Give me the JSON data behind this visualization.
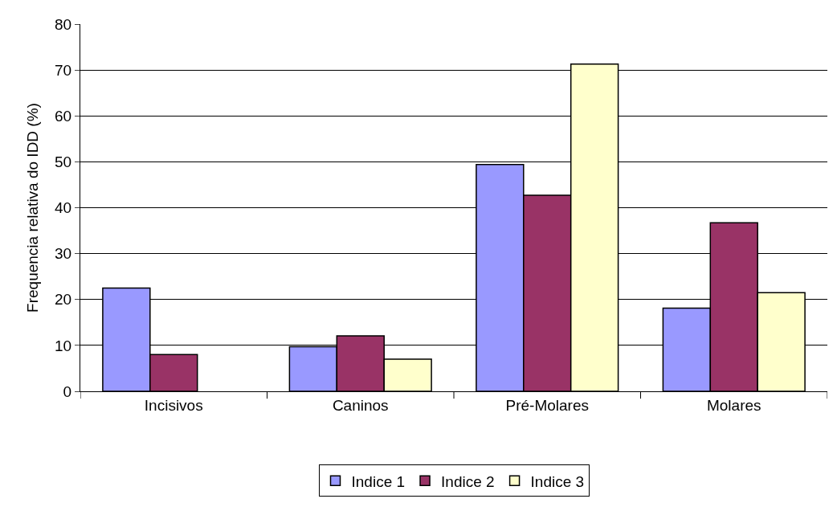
{
  "chart_data": {
    "type": "bar",
    "ylabel": "Frequencia relativa do IDD (%)",
    "categories": [
      "Incisivos",
      "Caninos",
      "Pré-Molares",
      "Molares"
    ],
    "series": [
      {
        "name": "Indice 1",
        "color": "#9999ff",
        "values": [
          22.5,
          9.7,
          49.4,
          18.1
        ]
      },
      {
        "name": "Indice 2",
        "color": "#993366",
        "values": [
          8.0,
          12.1,
          42.7,
          36.7
        ]
      },
      {
        "name": "Indice 3",
        "color": "#ffffcc",
        "values": [
          null,
          7.0,
          71.3,
          21.5
        ]
      }
    ],
    "ylim": [
      0,
      80
    ],
    "yticks": [
      0,
      10,
      20,
      30,
      40,
      50,
      60,
      70,
      80
    ],
    "grid": "y",
    "legend": "bottom"
  }
}
